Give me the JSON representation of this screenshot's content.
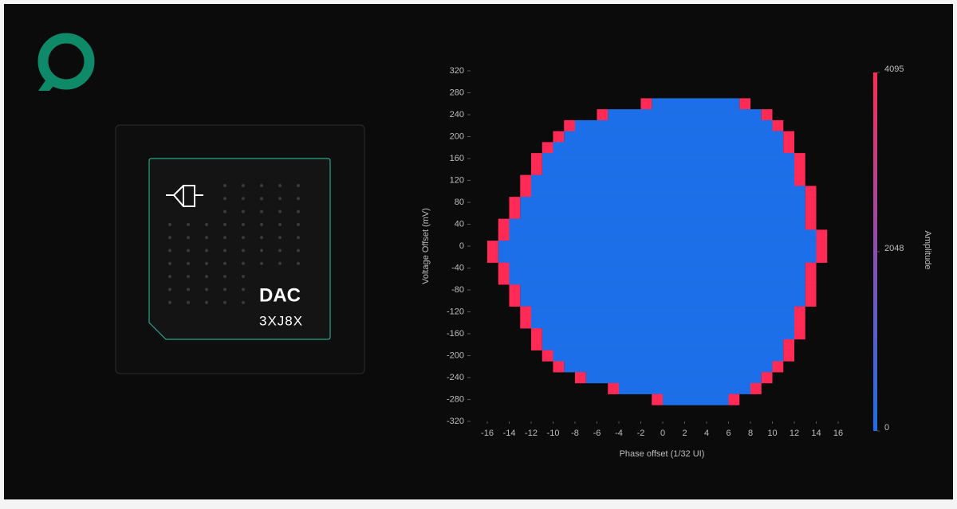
{
  "card": {
    "title": "DAC",
    "code": "3XJ8X"
  },
  "chart_data": {
    "type": "heatmap",
    "x_label": "Phase offset (1/32 UI)",
    "y_label": "Voltage Offset (mV)",
    "colorbar_label": "Amplitude",
    "xlim": [
      -16,
      16
    ],
    "xticks": [
      -16,
      -14,
      -12,
      -10,
      -8,
      -6,
      -4,
      -2,
      0,
      2,
      4,
      6,
      8,
      10,
      12,
      14,
      16
    ],
    "ylim": [
      -320,
      320
    ],
    "yticks": [
      -320,
      -280,
      -240,
      -200,
      -160,
      -120,
      -80,
      -40,
      0,
      40,
      80,
      120,
      160,
      200,
      240,
      280,
      320
    ],
    "clim": [
      0,
      4095
    ],
    "cticks": [
      0,
      2048,
      4095
    ],
    "row_height": 20,
    "cell_width": 1,
    "edge_value": 4095,
    "inner_value": 0,
    "y": [
      260,
      240,
      220,
      200,
      180,
      160,
      140,
      120,
      100,
      80,
      60,
      40,
      20,
      0,
      -20,
      -40,
      -60,
      -80,
      -100,
      -120,
      -140,
      -160,
      -180,
      -200,
      -220,
      -240,
      -260,
      -280
    ],
    "left": [
      -2,
      -6,
      -9,
      -10,
      -11,
      -12,
      -12,
      -13,
      -13,
      -14,
      -14,
      -15,
      -15,
      -16,
      -16,
      -15,
      -15,
      -14,
      -14,
      -13,
      -13,
      -12,
      -12,
      -11,
      -10,
      -8,
      -5,
      -1
    ],
    "right": [
      8,
      10,
      11,
      12,
      12,
      13,
      13,
      13,
      14,
      14,
      14,
      14,
      15,
      15,
      15,
      14,
      14,
      14,
      14,
      13,
      13,
      13,
      12,
      12,
      11,
      10,
      9,
      7
    ],
    "colors": [
      "#1c6fe8",
      "#8a4fb0",
      "#ff2a55"
    ]
  }
}
